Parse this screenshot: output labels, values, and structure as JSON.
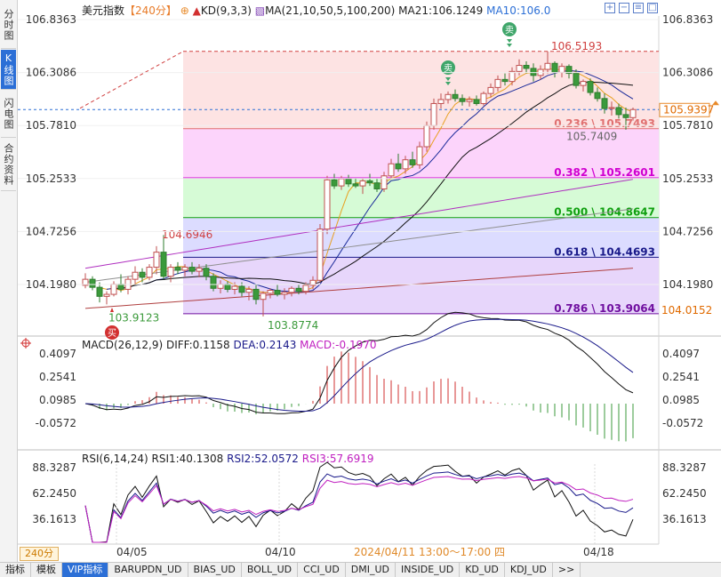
{
  "left_tabs": [
    {
      "label": "分时图",
      "active": false
    },
    {
      "label": "K线图",
      "active": true
    },
    {
      "label": "闪电图",
      "active": false
    },
    {
      "label": "合约资料",
      "active": false
    }
  ],
  "header": {
    "symbol": "美元指数",
    "period_tag": "【240分】",
    "kd_label": "KD(9,3,3)",
    "ma_label": "MA(21,10,50,5,100,200)",
    "ma21_label": "MA21:106.1249",
    "ma10_label": "MA10:106.0"
  },
  "toolbar_icons": [
    "zoom-in-icon",
    "zoom-out-icon",
    "settings-icon",
    "maximize-icon"
  ],
  "price_axis": {
    "ticks": [
      "106.8363",
      "106.3086",
      "105.7810",
      "105.2533",
      "104.7256",
      "104.1980"
    ],
    "current_price": "105.9397",
    "low_marker": "104.0152"
  },
  "annotations": {
    "high": "106.5193",
    "swing_low": "105.7409",
    "left_high": "104.6946",
    "left_low": "103.9123",
    "mid_low": "103.8774"
  },
  "fib_levels": [
    {
      "label": "0.236 \\ 105.7493",
      "color": "#e07070"
    },
    {
      "label": "0.382 \\ 105.2601",
      "color": "#d000d0"
    },
    {
      "label": "0.500 \\ 104.8647",
      "color": "#10a010"
    },
    {
      "label": "0.618 \\ 104.4693",
      "color": "#1a1a8a"
    },
    {
      "label": "0.786 \\ 103.9064",
      "color": "#7010a0"
    }
  ],
  "signals": {
    "sell": "卖",
    "buy": "买"
  },
  "macd": {
    "params": "MACD(26,12,9)",
    "diff": "DIFF:0.1158",
    "dea": "DEA:0.2143",
    "macd": "MACD:-0.1970",
    "ticks": [
      "0.4097",
      "0.2541",
      "0.0985",
      "-0.0572"
    ]
  },
  "rsi": {
    "params": "RSI(6,14,24)",
    "rsi1": "RSI1:40.1308",
    "rsi2": "RSI2:52.0572",
    "rsi3": "RSI3:57.6919",
    "ticks": [
      "88.3287",
      "62.2450",
      "36.1613"
    ]
  },
  "time_axis": {
    "labels": [
      "04/05",
      "04/10",
      "04/18"
    ],
    "crosshair_label": "2024/04/11 13:00～17:00 四"
  },
  "period_selector": "240分",
  "colors": {
    "up": "#d23030",
    "down": "#3b9a3b",
    "accent": "#2c6fd6"
  },
  "bottom_tabs": [
    {
      "label": "指标",
      "active": false
    },
    {
      "label": "模板",
      "active": false
    },
    {
      "label": "VIP指标",
      "active": true
    },
    {
      "label": "BARUPDN_UD",
      "active": false
    },
    {
      "label": "BIAS_UD",
      "active": false
    },
    {
      "label": "BOLL_UD",
      "active": false
    },
    {
      "label": "CCI_UD",
      "active": false
    },
    {
      "label": "DMI_UD",
      "active": false
    },
    {
      "label": "INSIDE_UD",
      "active": false
    },
    {
      "label": "KD_UD",
      "active": false
    },
    {
      "label": "KDJ_UD",
      "active": false
    },
    {
      "label": ">>",
      "active": false
    }
  ],
  "candles": [
    [
      104.19,
      104.31,
      104.16,
      104.25
    ],
    [
      104.25,
      104.28,
      104.14,
      104.17
    ],
    [
      104.17,
      104.22,
      104.02,
      104.08
    ],
    [
      104.08,
      104.13,
      104.0,
      104.1
    ],
    [
      104.1,
      104.23,
      104.08,
      104.2
    ],
    [
      104.2,
      104.3,
      104.12,
      104.15
    ],
    [
      104.15,
      104.28,
      104.1,
      104.25
    ],
    [
      104.25,
      104.38,
      104.2,
      104.32
    ],
    [
      104.32,
      104.36,
      104.22,
      104.27
    ],
    [
      104.27,
      104.4,
      104.24,
      104.37
    ],
    [
      104.37,
      104.58,
      104.3,
      104.52
    ],
    [
      104.52,
      104.69,
      104.25,
      104.28
    ],
    [
      104.28,
      104.4,
      104.22,
      104.37
    ],
    [
      104.37,
      104.42,
      104.3,
      104.34
    ],
    [
      104.34,
      104.4,
      104.28,
      104.37
    ],
    [
      104.37,
      104.42,
      104.3,
      104.33
    ],
    [
      104.33,
      104.4,
      104.27,
      104.36
    ],
    [
      104.36,
      104.4,
      104.24,
      104.28
    ],
    [
      104.28,
      104.31,
      104.13,
      104.16
    ],
    [
      104.16,
      104.24,
      104.11,
      104.2
    ],
    [
      104.2,
      104.23,
      104.12,
      104.15
    ],
    [
      104.15,
      104.22,
      104.1,
      104.18
    ],
    [
      104.18,
      104.22,
      104.08,
      104.12
    ],
    [
      104.12,
      104.18,
      104.04,
      104.15
    ],
    [
      104.15,
      104.2,
      104.0,
      104.05
    ],
    [
      104.05,
      104.13,
      103.88,
      104.11
    ],
    [
      104.11,
      104.16,
      104.06,
      104.14
    ],
    [
      104.14,
      104.2,
      104.08,
      104.1
    ],
    [
      104.1,
      104.16,
      104.05,
      104.12
    ],
    [
      104.12,
      104.18,
      104.08,
      104.16
    ],
    [
      104.16,
      104.2,
      104.1,
      104.13
    ],
    [
      104.13,
      104.22,
      104.1,
      104.19
    ],
    [
      104.19,
      104.28,
      104.15,
      104.24
    ],
    [
      104.24,
      104.8,
      104.22,
      104.75
    ],
    [
      104.75,
      105.28,
      104.7,
      105.24
    ],
    [
      105.24,
      105.3,
      105.15,
      105.18
    ],
    [
      105.18,
      105.28,
      105.14,
      105.25
    ],
    [
      105.25,
      105.29,
      105.17,
      105.2
    ],
    [
      105.2,
      105.26,
      105.16,
      105.18
    ],
    [
      105.18,
      105.25,
      105.1,
      105.23
    ],
    [
      105.23,
      105.3,
      105.18,
      105.21
    ],
    [
      105.21,
      105.25,
      105.12,
      105.15
    ],
    [
      105.15,
      105.32,
      105.12,
      105.28
    ],
    [
      105.28,
      105.45,
      105.25,
      105.4
    ],
    [
      105.4,
      105.5,
      105.32,
      105.35
    ],
    [
      105.35,
      105.48,
      105.3,
      105.44
    ],
    [
      105.44,
      105.52,
      105.36,
      105.39
    ],
    [
      105.39,
      105.62,
      105.35,
      105.57
    ],
    [
      105.57,
      105.82,
      105.52,
      105.78
    ],
    [
      105.78,
      106.05,
      105.74,
      106.0
    ],
    [
      106.0,
      106.1,
      105.95,
      106.04
    ],
    [
      106.04,
      106.12,
      106.0,
      106.09
    ],
    [
      106.09,
      106.14,
      106.02,
      106.05
    ],
    [
      106.05,
      106.09,
      105.98,
      106.02
    ],
    [
      106.02,
      106.07,
      105.97,
      106.04
    ],
    [
      106.04,
      106.08,
      105.98,
      106.0
    ],
    [
      106.0,
      106.12,
      105.98,
      106.1
    ],
    [
      106.1,
      106.2,
      106.06,
      106.16
    ],
    [
      106.16,
      106.28,
      106.12,
      106.24
    ],
    [
      106.24,
      106.3,
      106.18,
      106.22
    ],
    [
      106.22,
      106.36,
      106.18,
      106.32
    ],
    [
      106.32,
      106.44,
      106.28,
      106.38
    ],
    [
      106.38,
      106.42,
      106.3,
      106.35
    ],
    [
      106.35,
      106.4,
      106.22,
      106.28
    ],
    [
      106.28,
      106.38,
      106.24,
      106.34
    ],
    [
      106.34,
      106.52,
      106.3,
      106.4
    ],
    [
      106.4,
      106.42,
      106.26,
      106.31
    ],
    [
      106.31,
      106.4,
      106.26,
      106.37
    ],
    [
      106.37,
      106.39,
      106.25,
      106.3
    ],
    [
      106.3,
      106.34,
      106.15,
      106.18
    ],
    [
      106.18,
      106.24,
      106.12,
      106.22
    ],
    [
      106.22,
      106.25,
      106.08,
      106.11
    ],
    [
      106.11,
      106.16,
      106.02,
      106.05
    ],
    [
      106.05,
      106.1,
      105.9,
      105.95
    ],
    [
      105.95,
      106.02,
      105.88,
      105.96
    ],
    [
      105.96,
      106.0,
      105.85,
      105.89
    ],
    [
      105.89,
      105.96,
      105.74,
      105.86
    ],
    [
      105.86,
      105.96,
      105.83,
      105.94
    ]
  ]
}
